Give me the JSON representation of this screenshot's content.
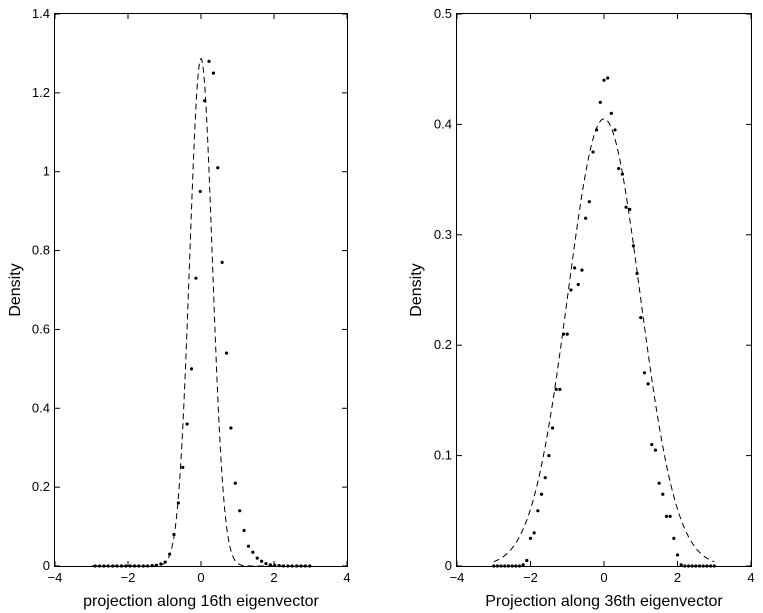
{
  "chart_data": [
    {
      "type": "scatter",
      "xlabel": "projection along 16th eigenvector",
      "ylabel": "Density",
      "xlim": [
        -4,
        4
      ],
      "ylim": [
        0,
        1.4
      ],
      "xticks": [
        -4,
        -2,
        0,
        2,
        4
      ],
      "yticks": [
        0,
        0.2,
        0.4,
        0.6,
        0.8,
        1,
        1.2,
        1.4
      ],
      "xtick_labels": [
        "−4",
        "−2",
        "0",
        "2",
        "4"
      ],
      "ytick_labels": [
        "0",
        "0.2",
        "0.4",
        "0.6",
        "0.8",
        "1",
        "1.2",
        "1.4"
      ],
      "grid": false,
      "series": [
        {
          "style": "dots",
          "x": [
            -2.9,
            -2.78,
            -2.66,
            -2.54,
            -2.42,
            -2.3,
            -2.18,
            -2.06,
            -1.94,
            -1.82,
            -1.7,
            -1.58,
            -1.46,
            -1.34,
            -1.22,
            -1.1,
            -0.98,
            -0.86,
            -0.74,
            -0.62,
            -0.5,
            -0.38,
            -0.26,
            -0.14,
            -0.02,
            0.1,
            0.22,
            0.34,
            0.46,
            0.58,
            0.7,
            0.82,
            0.94,
            1.06,
            1.18,
            1.3,
            1.42,
            1.54,
            1.66,
            1.78,
            1.9,
            2.02,
            2.14,
            2.26,
            2.38,
            2.5,
            2.62,
            2.74,
            2.86,
            2.98
          ],
          "y": [
            0,
            0,
            0,
            0,
            0,
            0,
            0,
            0,
            0,
            0,
            0,
            0,
            0,
            0.001,
            0.002,
            0.005,
            0.01,
            0.03,
            0.08,
            0.16,
            0.25,
            0.36,
            0.5,
            0.73,
            0.95,
            1.18,
            1.28,
            1.25,
            1.01,
            0.77,
            0.54,
            0.35,
            0.21,
            0.14,
            0.09,
            0.05,
            0.035,
            0.02,
            0.012,
            0.006,
            0.003,
            0.002,
            0.001,
            0,
            0,
            0,
            0,
            0,
            0,
            0
          ]
        },
        {
          "style": "dashed",
          "kind": "normal-density",
          "mean": 0,
          "sd": 0.31,
          "x_range": [
            -3,
            3
          ]
        }
      ]
    },
    {
      "type": "scatter",
      "xlabel": "Projection along 36th eigenvector",
      "ylabel": "Density",
      "xlim": [
        -4,
        4
      ],
      "ylim": [
        0,
        0.5
      ],
      "xticks": [
        -4,
        -2,
        0,
        2,
        4
      ],
      "yticks": [
        0,
        0.1,
        0.2,
        0.3,
        0.4,
        0.5
      ],
      "xtick_labels": [
        "−4",
        "−2",
        "0",
        "2",
        "4"
      ],
      "ytick_labels": [
        "0",
        "0.1",
        "0.2",
        "0.3",
        "0.4",
        "0.5"
      ],
      "grid": false,
      "series": [
        {
          "style": "dots",
          "x": [
            -3.0,
            -2.9,
            -2.8,
            -2.7,
            -2.6,
            -2.5,
            -2.4,
            -2.3,
            -2.2,
            -2.1,
            -2.0,
            -1.9,
            -1.8,
            -1.7,
            -1.6,
            -1.5,
            -1.4,
            -1.3,
            -1.2,
            -1.1,
            -1.0,
            -0.9,
            -0.8,
            -0.7,
            -0.6,
            -0.5,
            -0.4,
            -0.3,
            -0.2,
            -0.1,
            0.0,
            0.1,
            0.2,
            0.3,
            0.4,
            0.5,
            0.6,
            0.7,
            0.8,
            0.9,
            1.0,
            1.1,
            1.2,
            1.3,
            1.4,
            1.5,
            1.6,
            1.7,
            1.8,
            1.9,
            2.0,
            2.1,
            2.2,
            2.3,
            2.4,
            2.5,
            2.6,
            2.7,
            2.8,
            2.9,
            3.0
          ],
          "y": [
            0,
            0,
            0,
            0,
            0,
            0,
            0,
            0,
            0.001,
            0.005,
            0.025,
            0.03,
            0.05,
            0.065,
            0.08,
            0.1,
            0.125,
            0.16,
            0.16,
            0.21,
            0.21,
            0.25,
            0.27,
            0.255,
            0.268,
            0.315,
            0.33,
            0.375,
            0.395,
            0.42,
            0.44,
            0.442,
            0.41,
            0.395,
            0.36,
            0.355,
            0.325,
            0.323,
            0.29,
            0.265,
            0.225,
            0.175,
            0.165,
            0.11,
            0.105,
            0.075,
            0.065,
            0.045,
            0.045,
            0.025,
            0.01,
            0.001,
            0,
            0,
            0,
            0,
            0,
            0,
            0,
            0,
            0
          ]
        },
        {
          "style": "dashed",
          "kind": "normal-density",
          "mean": 0,
          "sd": 0.985,
          "x_range": [
            -3,
            3
          ]
        }
      ]
    }
  ]
}
